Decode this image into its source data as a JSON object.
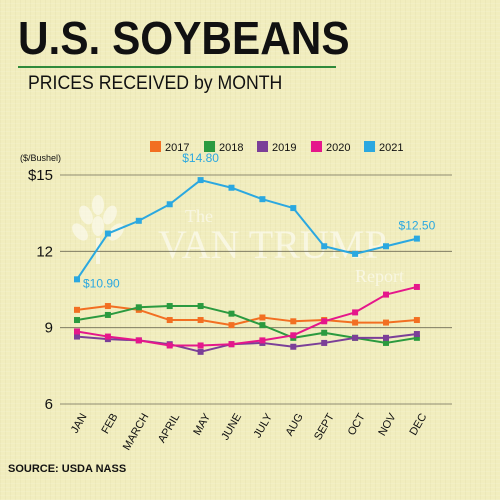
{
  "title": "U.S. SOYBEANS",
  "subtitle": "PRICES RECEIVED by MONTH",
  "source": "SOURCE: USDA NASS",
  "watermark": {
    "line1": "The",
    "line2": "VAN TRUMP",
    "line3": "Report"
  },
  "colors": {
    "background": "#f1edbe",
    "title_rule": "#2f8a3a",
    "2017": "#f26f22",
    "2018": "#2b9a3f",
    "2019": "#7b3f98",
    "2020": "#e5178b",
    "2021": "#2ba8e0"
  },
  "chart_data": {
    "type": "line",
    "title": "U.S. SOYBEANS",
    "subtitle": "PRICES RECEIVED by MONTH",
    "ylabel": "($/Bushel)",
    "xlabel": "",
    "categories": [
      "JAN",
      "FEB",
      "MARCH",
      "APRIL",
      "MAY",
      "JUNE",
      "JULY",
      "AUG",
      "SEPT",
      "OCT",
      "NOV",
      "DEC"
    ],
    "ylim": [
      6,
      15
    ],
    "yticks": [
      6,
      9,
      12,
      15
    ],
    "ytick_labels": [
      "6",
      "9",
      "12",
      "$15"
    ],
    "grid": "horizontal",
    "legend_position": "top",
    "series": [
      {
        "name": "2017",
        "values": [
          9.7,
          9.85,
          9.7,
          9.3,
          9.3,
          9.1,
          9.4,
          9.25,
          9.3,
          9.2,
          9.2,
          9.3
        ]
      },
      {
        "name": "2018",
        "values": [
          9.3,
          9.5,
          9.8,
          9.85,
          9.85,
          9.55,
          9.1,
          8.6,
          8.8,
          8.6,
          8.4,
          8.6
        ]
      },
      {
        "name": "2019",
        "values": [
          8.65,
          8.55,
          8.5,
          8.35,
          8.05,
          8.35,
          8.4,
          8.25,
          8.4,
          8.6,
          8.6,
          8.75
        ]
      },
      {
        "name": "2020",
        "values": [
          8.85,
          8.65,
          8.5,
          8.3,
          8.3,
          8.35,
          8.5,
          8.7,
          9.25,
          9.6,
          10.3,
          10.6
        ]
      },
      {
        "name": "2021",
        "values": [
          10.9,
          12.7,
          13.2,
          13.85,
          14.8,
          14.5,
          14.05,
          13.7,
          12.2,
          11.9,
          12.2,
          12.5
        ]
      }
    ],
    "annotations": [
      {
        "series": "2021",
        "category": "JAN",
        "text": "$10.90"
      },
      {
        "series": "2021",
        "category": "MAY",
        "text": "$14.80"
      },
      {
        "series": "2021",
        "category": "DEC",
        "text": "$12.50"
      }
    ]
  }
}
